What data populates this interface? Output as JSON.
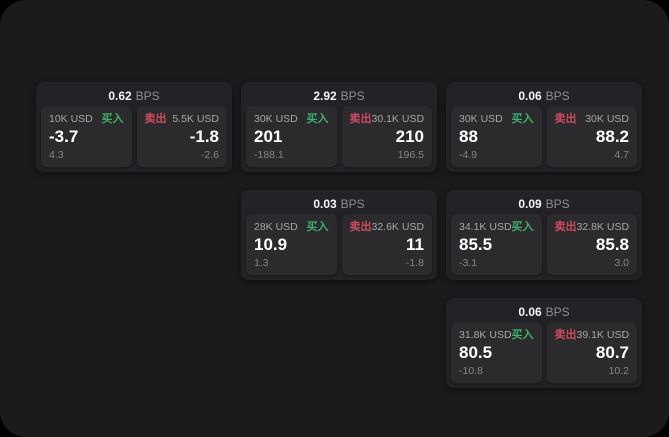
{
  "labels": {
    "bps_unit": "BPS",
    "buy": "买入",
    "sell": "卖出"
  },
  "colors": {
    "background": "#000000",
    "panel": "#1b1b1d",
    "card": "#232327",
    "quote_tile": "#2b2b2e",
    "buy_green": "#3fae68",
    "sell_red": "#ce4a60",
    "value_white": "#ffffff",
    "muted_gray": "#8e8e93"
  },
  "cards": [
    {
      "bps": "0.62",
      "buy": {
        "notional": "10K USD",
        "value": "-3.7",
        "delta": "4.3"
      },
      "sell": {
        "notional": "5.5K USD",
        "value": "-1.8",
        "delta": "-2.6"
      }
    },
    {
      "bps": "2.92",
      "buy": {
        "notional": "30K USD",
        "value": "201",
        "delta": "-188.1"
      },
      "sell": {
        "notional": "30.1K USD",
        "value": "210",
        "delta": "196.5"
      }
    },
    {
      "bps": "0.06",
      "buy": {
        "notional": "30K USD",
        "value": "88",
        "delta": "-4.9"
      },
      "sell": {
        "notional": "30K USD",
        "value": "88.2",
        "delta": "4.7"
      }
    },
    {
      "bps": "0.03",
      "buy": {
        "notional": "28K USD",
        "value": "10.9",
        "delta": "1.3"
      },
      "sell": {
        "notional": "32.6K USD",
        "value": "11",
        "delta": "-1.8"
      }
    },
    {
      "bps": "0.09",
      "buy": {
        "notional": "34.1K USD",
        "value": "85.5",
        "delta": "-3.1"
      },
      "sell": {
        "notional": "32.8K USD",
        "value": "85.8",
        "delta": "3.0"
      }
    },
    {
      "bps": "0.06",
      "buy": {
        "notional": "31.8K USD",
        "value": "80.5",
        "delta": "-10.8"
      },
      "sell": {
        "notional": "39.1K USD",
        "value": "80.7",
        "delta": "10.2"
      }
    }
  ]
}
